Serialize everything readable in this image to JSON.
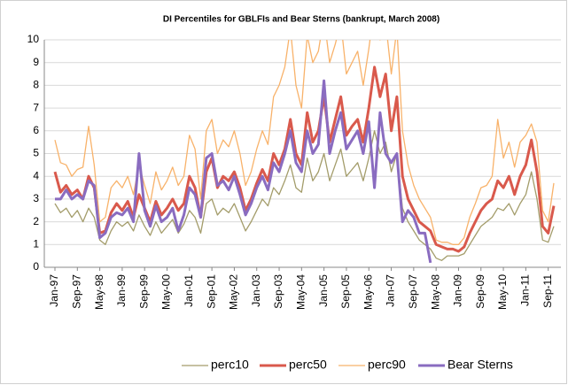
{
  "chart_data": {
    "type": "line",
    "title": "DI Percentiles for GBLFIs and Bear Sterns (bankrupt, March 2008)",
    "categories": [
      "Jan-97",
      null,
      null,
      null,
      "Sep-97",
      null,
      null,
      null,
      "May-98",
      null,
      null,
      null,
      "Jan-99",
      null,
      null,
      null,
      "Sep-99",
      null,
      null,
      null,
      "May-00",
      null,
      null,
      null,
      "Jan-01",
      null,
      null,
      null,
      "Sep-01",
      null,
      null,
      null,
      "May-02",
      null,
      null,
      null,
      "Jan-03",
      null,
      null,
      null,
      "Sep-03",
      null,
      null,
      null,
      "May-04",
      null,
      null,
      null,
      "Jan-05",
      null,
      null,
      null,
      "Sep-05",
      null,
      null,
      null,
      "May-06",
      null,
      null,
      null,
      "Jan-07",
      null,
      null,
      null,
      "Sep-07",
      null,
      null,
      null,
      "May-08",
      null,
      null,
      null,
      "Jan-09",
      null,
      null,
      null,
      "Sep-09",
      null,
      null,
      null,
      "May-10",
      null,
      null,
      null,
      "Jan-11",
      null,
      null,
      null,
      "Sep-11",
      null
    ],
    "series": [
      {
        "name": "perc10",
        "color": "#a39c6a",
        "width": 1.3,
        "values": [
          2.8,
          2.4,
          2.6,
          2.2,
          2.5,
          2.0,
          2.6,
          2.2,
          1.2,
          1.0,
          1.6,
          2.0,
          1.8,
          2.0,
          1.6,
          2.3,
          1.8,
          1.4,
          2.0,
          1.5,
          1.8,
          2.1,
          1.5,
          1.9,
          2.5,
          2.2,
          1.5,
          2.8,
          3.0,
          2.3,
          2.6,
          2.4,
          2.8,
          2.2,
          1.6,
          2.0,
          2.5,
          3.0,
          2.7,
          3.5,
          3.2,
          3.8,
          4.5,
          3.5,
          3.3,
          4.8,
          3.8,
          4.2,
          5.0,
          3.8,
          4.5,
          5.2,
          4.0,
          4.3,
          4.6,
          3.8,
          4.8,
          6.0,
          5.0,
          5.5,
          4.2,
          5.0,
          2.6,
          2.0,
          1.6,
          1.2,
          1.0,
          0.8,
          0.4,
          0.3,
          0.5,
          0.5,
          0.5,
          0.6,
          1.0,
          1.4,
          1.8,
          2.0,
          2.2,
          2.6,
          2.5,
          2.8,
          2.3,
          2.8,
          3.2,
          4.2,
          3.0,
          1.2,
          1.1,
          1.8
        ]
      },
      {
        "name": "perc50",
        "color": "#d9594c",
        "width": 3,
        "values": [
          4.2,
          3.3,
          3.6,
          3.2,
          3.4,
          3.0,
          4.0,
          3.5,
          1.5,
          1.6,
          2.4,
          2.8,
          2.5,
          2.9,
          2.2,
          3.2,
          2.6,
          2.0,
          2.9,
          2.3,
          2.6,
          3.0,
          2.5,
          2.8,
          4.0,
          3.5,
          2.2,
          4.2,
          4.8,
          3.5,
          4.0,
          3.8,
          4.2,
          3.5,
          2.5,
          3.0,
          3.7,
          4.3,
          3.8,
          5.0,
          4.5,
          5.2,
          6.5,
          5.0,
          4.5,
          6.8,
          5.5,
          6.0,
          7.5,
          5.5,
          6.5,
          7.5,
          5.8,
          6.2,
          6.5,
          5.5,
          7.0,
          8.8,
          7.5,
          8.5,
          6.0,
          7.5,
          4.0,
          3.0,
          2.5,
          2.0,
          1.8,
          1.6,
          1.0,
          0.9,
          0.8,
          0.8,
          0.7,
          0.9,
          1.5,
          2.0,
          2.5,
          2.8,
          3.0,
          3.8,
          3.5,
          4.0,
          3.2,
          4.0,
          4.5,
          5.6,
          4.2,
          1.8,
          1.5,
          2.7
        ]
      },
      {
        "name": "perc90",
        "color": "#f8b26a",
        "width": 1.3,
        "values": [
          5.6,
          4.6,
          4.5,
          4.0,
          4.3,
          4.4,
          6.2,
          4.5,
          2.0,
          2.2,
          3.5,
          3.8,
          3.5,
          4.0,
          3.2,
          4.5,
          3.6,
          2.8,
          4.2,
          3.4,
          3.8,
          4.4,
          3.6,
          4.0,
          5.8,
          5.2,
          3.0,
          6.0,
          6.5,
          5.0,
          5.6,
          5.3,
          6.0,
          5.0,
          3.6,
          4.2,
          5.2,
          6.0,
          5.4,
          7.5,
          8.0,
          8.8,
          10.5,
          8.0,
          7.0,
          10.2,
          9.0,
          9.5,
          11.0,
          9.0,
          9.8,
          10.8,
          8.5,
          9.0,
          9.5,
          8.0,
          9.6,
          11.5,
          10.0,
          10.8,
          8.5,
          10.5,
          6.0,
          4.5,
          3.6,
          3.0,
          2.6,
          2.2,
          1.2,
          1.1,
          1.1,
          1.0,
          1.0,
          1.3,
          2.2,
          2.8,
          3.5,
          3.6,
          4.0,
          6.5,
          4.8,
          5.5,
          4.4,
          5.5,
          5.8,
          6.3,
          5.5,
          2.5,
          2.0,
          3.7
        ]
      },
      {
        "name": "Bear Sterns",
        "color": "#8a6cc0",
        "width": 3,
        "values": [
          3.0,
          3.0,
          3.4,
          3.0,
          3.2,
          3.0,
          3.8,
          3.6,
          1.3,
          1.5,
          2.2,
          2.4,
          2.3,
          2.6,
          2.0,
          5.0,
          2.5,
          1.8,
          2.7,
          2.0,
          2.2,
          2.6,
          1.6,
          2.3,
          3.5,
          3.2,
          2.2,
          4.8,
          5.0,
          3.6,
          3.8,
          3.4,
          4.0,
          3.2,
          2.3,
          2.8,
          3.5,
          4.0,
          3.4,
          4.6,
          4.2,
          5.0,
          6.0,
          4.6,
          4.2,
          6.0,
          5.0,
          5.4,
          8.2,
          5.0,
          6.0,
          6.8,
          5.2,
          5.6,
          6.0,
          5.0,
          6.4,
          3.5,
          6.8,
          5.0,
          4.6,
          5.0,
          2.0,
          2.5,
          2.2,
          1.5,
          1.5,
          0.2,
          null,
          null,
          null,
          null,
          null,
          null,
          null,
          null,
          null,
          null,
          null,
          null,
          null,
          null,
          null,
          null,
          null,
          null,
          null,
          null,
          null,
          null
        ]
      }
    ],
    "ylim": [
      0,
      10
    ],
    "yticks": [
      0,
      1,
      2,
      3,
      4,
      5,
      6,
      7,
      8,
      9,
      10
    ],
    "grid": true
  }
}
